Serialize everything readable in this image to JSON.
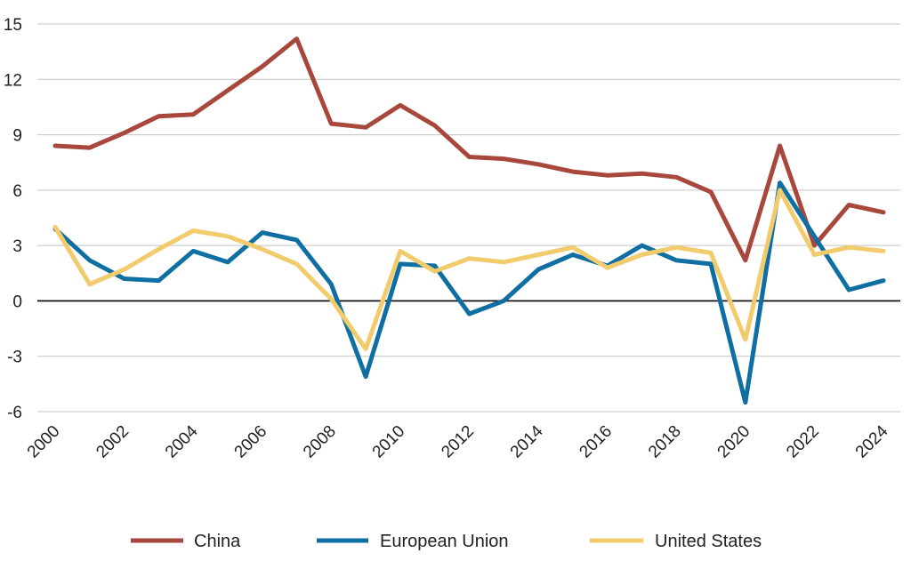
{
  "chart_data": {
    "type": "line",
    "title": "",
    "xlabel": "",
    "ylabel": "",
    "x": [
      2000,
      2001,
      2002,
      2003,
      2004,
      2005,
      2006,
      2007,
      2008,
      2009,
      2010,
      2011,
      2012,
      2013,
      2014,
      2015,
      2016,
      2017,
      2018,
      2019,
      2020,
      2021,
      2022,
      2023,
      2024
    ],
    "x_tick_labels": [
      "2000",
      "2002",
      "2004",
      "2006",
      "2008",
      "2010",
      "2012",
      "2014",
      "2016",
      "2018",
      "2020",
      "2022",
      "2024"
    ],
    "ylim": [
      -6,
      15
    ],
    "y_ticks": [
      15,
      12,
      9,
      6,
      3,
      0,
      -3,
      -6
    ],
    "grid": true,
    "legend_position": "bottom",
    "series": [
      {
        "name": "China",
        "color": "#a8483d",
        "values": [
          8.4,
          8.3,
          9.1,
          10.0,
          10.1,
          11.4,
          12.7,
          14.2,
          9.6,
          9.4,
          10.6,
          9.5,
          7.8,
          7.7,
          7.4,
          7.0,
          6.8,
          6.9,
          6.7,
          5.9,
          2.2,
          8.4,
          3.0,
          5.2,
          4.8
        ]
      },
      {
        "name": "European Union",
        "color": "#0f6fa3",
        "values": [
          3.9,
          2.2,
          1.2,
          1.1,
          2.7,
          2.1,
          3.7,
          3.3,
          0.9,
          -4.1,
          2.0,
          1.9,
          -0.7,
          0.0,
          1.7,
          2.5,
          1.9,
          3.0,
          2.2,
          2.0,
          -5.5,
          6.4,
          3.5,
          0.6,
          1.1
        ]
      },
      {
        "name": "United States",
        "color": "#f2cb6c",
        "values": [
          4.0,
          0.9,
          1.7,
          2.8,
          3.8,
          3.5,
          2.8,
          2.0,
          0.1,
          -2.6,
          2.7,
          1.6,
          2.3,
          2.1,
          2.5,
          2.9,
          1.8,
          2.5,
          2.9,
          2.6,
          -2.1,
          6.0,
          2.5,
          2.9,
          2.7
        ]
      }
    ]
  }
}
